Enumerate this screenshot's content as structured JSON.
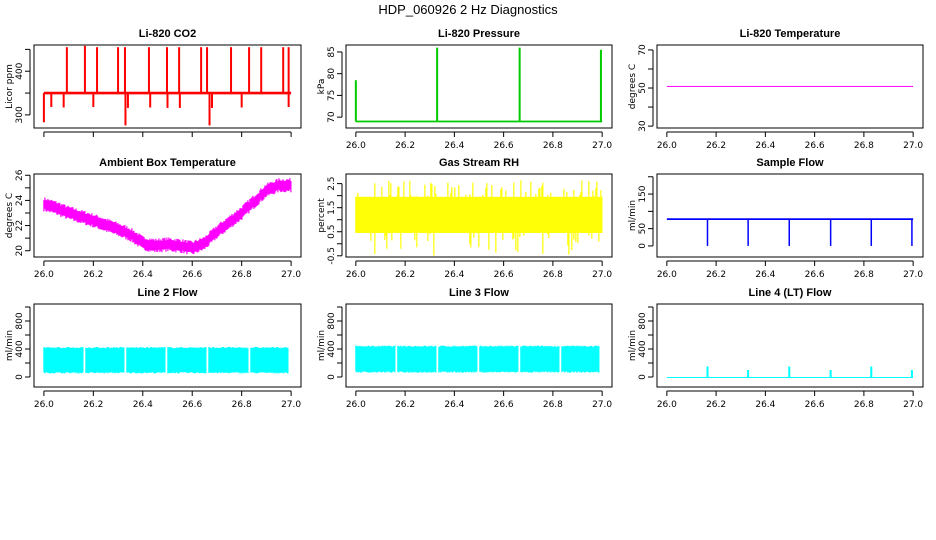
{
  "title": "HDP_060926  2 Hz Diagnostics",
  "chart_data": [
    {
      "type": "line",
      "title": "Li-820 CO2",
      "ylabel": "Licor ppm",
      "color": "#ff0000",
      "xlim": [
        25.96,
        27.04
      ],
      "xticks": [
        26.0,
        26.2,
        26.4,
        26.6,
        26.8,
        27.0
      ],
      "show_xtick_labels": false,
      "ylim": [
        270,
        460
      ],
      "yticks": [
        300,
        350,
        400,
        450
      ],
      "ytick_labels": [
        "300",
        "",
        "400",
        ""
      ],
      "baseline": {
        "x": [
          26.0,
          27.0
        ],
        "y": 350,
        "band": [
          347,
          353
        ]
      },
      "spikes": {
        "x": [
          26.093,
          26.166,
          26.215,
          26.3,
          26.328,
          26.425,
          26.498,
          26.547,
          26.636,
          26.66,
          26.757,
          26.83,
          26.879,
          26.968,
          26.99
        ],
        "y": [
          455,
          458,
          455,
          455,
          455,
          455,
          455,
          455,
          455,
          455,
          455,
          455,
          455,
          455,
          455
        ]
      },
      "dips": {
        "x": [
          26.0,
          26.03,
          26.08,
          26.2,
          26.33,
          26.34,
          26.43,
          26.5,
          26.55,
          26.67,
          26.68,
          26.8,
          26.99
        ],
        "y": [
          283,
          318,
          317,
          318,
          276,
          316,
          317,
          316,
          316,
          276,
          316,
          317,
          318
        ]
      }
    },
    {
      "type": "line",
      "title": "Li-820 Pressure",
      "ylabel": "kPa",
      "color": "#00cc00",
      "xlim": [
        25.96,
        27.04
      ],
      "xticks": [
        26.0,
        26.2,
        26.4,
        26.6,
        26.8,
        27.0
      ],
      "show_xtick_labels": true,
      "xtick_labels": [
        "26.0",
        "26.2",
        "26.4",
        "26.6",
        "26.8",
        "27.0"
      ],
      "ylim": [
        67.5,
        86.6
      ],
      "yticks": [
        70,
        75,
        80,
        85
      ],
      "ytick_labels": [
        "70",
        "75",
        "80",
        "85"
      ],
      "baseline": {
        "x": [
          26.0,
          27.0
        ],
        "y": 69,
        "band": [
          68.8,
          69.2
        ]
      },
      "spikes": {
        "x": [
          26.0,
          26.33,
          26.665,
          26.995
        ],
        "y": [
          78.5,
          86,
          86,
          85.5
        ]
      }
    },
    {
      "type": "line",
      "title": "Li-820 Temperature",
      "ylabel": "degrees C",
      "color": "#ff00ff",
      "xlim": [
        25.96,
        27.04
      ],
      "xticks": [
        26.0,
        26.2,
        26.4,
        26.6,
        26.8,
        27.0
      ],
      "show_xtick_labels": true,
      "xtick_labels": [
        "26.0",
        "26.2",
        "26.4",
        "26.6",
        "26.8",
        "27.0"
      ],
      "ylim": [
        29,
        72.6
      ],
      "yticks": [
        30,
        40,
        50,
        60,
        70
      ],
      "ytick_labels": [
        "30",
        "",
        "50",
        "",
        "70"
      ],
      "baseline": {
        "x": [
          26.0,
          27.0
        ],
        "y": 51,
        "band": [
          50.9,
          51.1
        ]
      }
    },
    {
      "type": "area",
      "title": "Ambient Box Temperature",
      "ylabel": "degrees C",
      "color": "#ff00ff",
      "xlim": [
        25.96,
        27.04
      ],
      "xticks": [
        26.0,
        26.2,
        26.4,
        26.6,
        26.8,
        27.0
      ],
      "show_xtick_labels": true,
      "xtick_labels": [
        "26.0",
        "26.2",
        "26.4",
        "26.6",
        "26.8",
        "27.0"
      ],
      "ylim": [
        19.5,
        26.1
      ],
      "yticks": [
        20,
        21,
        22,
        23,
        24,
        25,
        26
      ],
      "ytick_labels": [
        "20",
        "",
        "22",
        "",
        "24",
        "",
        "26"
      ],
      "trend": {
        "x": [
          26.0,
          26.05,
          26.1,
          26.2,
          26.3,
          26.35,
          26.4,
          26.45,
          26.5,
          26.55,
          26.6,
          26.65,
          26.7,
          26.8,
          26.9,
          26.95,
          27.0
        ],
        "y": [
          23.7,
          23.4,
          23.0,
          22.4,
          21.7,
          21.3,
          20.6,
          20.4,
          20.5,
          20.4,
          20.2,
          20.6,
          21.5,
          23.0,
          24.8,
          25.2,
          25.2
        ],
        "halfwidth": 0.45
      }
    },
    {
      "type": "area",
      "title": "Gas Stream RH",
      "ylabel": "percent",
      "color": "#ffff00",
      "xlim": [
        25.96,
        27.04
      ],
      "xticks": [
        26.0,
        26.2,
        26.4,
        26.6,
        26.8,
        27.0
      ],
      "show_xtick_labels": true,
      "xtick_labels": [
        "26.0",
        "26.2",
        "26.4",
        "26.6",
        "26.8",
        "27.0"
      ],
      "ylim": [
        -0.55,
        2.9
      ],
      "yticks": [
        -0.5,
        0,
        0.5,
        1,
        1.5,
        2,
        2.5
      ],
      "ytick_labels": [
        "-0.5",
        "",
        "0.5",
        "",
        "1.5",
        "",
        "2.5"
      ],
      "band": {
        "x": [
          26.0,
          27.0
        ],
        "low": 0.45,
        "high": 1.95
      },
      "extremes": {
        "min": -0.5,
        "max": 2.65
      }
    },
    {
      "type": "line",
      "title": "Sample Flow",
      "ylabel": "ml/min",
      "color": "#0000ff",
      "xlim": [
        25.96,
        27.04
      ],
      "xticks": [
        26.0,
        26.2,
        26.4,
        26.6,
        26.8,
        27.0
      ],
      "show_xtick_labels": true,
      "xtick_labels": [
        "26.0",
        "26.2",
        "26.4",
        "26.6",
        "26.8",
        "27.0"
      ],
      "ylim": [
        -32,
        208
      ],
      "yticks": [
        0,
        50,
        100,
        150,
        200
      ],
      "ytick_labels": [
        "0",
        "50",
        "",
        "150",
        ""
      ],
      "baseline": {
        "x": [
          26.0,
          27.0
        ],
        "y": 77,
        "band": [
          75,
          80
        ]
      },
      "drops": {
        "x": [
          26.165,
          26.33,
          26.497,
          26.665,
          26.83,
          26.995
        ],
        "y": [
          0,
          0,
          0,
          0,
          0,
          0
        ]
      }
    },
    {
      "type": "area",
      "title": "Line 2 Flow",
      "ylabel": "ml/min",
      "color": "#00ffff",
      "xlim": [
        25.96,
        27.04
      ],
      "xticks": [
        26.0,
        26.2,
        26.4,
        26.6,
        26.8,
        27.0
      ],
      "show_xtick_labels": true,
      "xtick_labels": [
        "26.0",
        "26.2",
        "26.4",
        "26.6",
        "26.8",
        "27.0"
      ],
      "ylim": [
        -143,
        1043
      ],
      "yticks": [
        0,
        200,
        400,
        600,
        800,
        1000
      ],
      "ytick_labels": [
        "0",
        "",
        "400",
        "",
        "800",
        ""
      ],
      "band": {
        "x": [
          26.0,
          26.99
        ],
        "low": 60,
        "high": 420
      },
      "gaps": [
        26.163,
        26.33,
        26.497,
        26.663,
        26.83
      ]
    },
    {
      "type": "area",
      "title": "Line 3 Flow",
      "ylabel": "ml/min",
      "color": "#00ffff",
      "xlim": [
        25.96,
        27.04
      ],
      "xticks": [
        26.0,
        26.2,
        26.4,
        26.6,
        26.8,
        27.0
      ],
      "show_xtick_labels": true,
      "xtick_labels": [
        "26.0",
        "26.2",
        "26.4",
        "26.6",
        "26.8",
        "27.0"
      ],
      "ylim": [
        -143,
        1043
      ],
      "yticks": [
        0,
        200,
        400,
        600,
        800,
        1000
      ],
      "ytick_labels": [
        "0",
        "",
        "400",
        "",
        "800",
        ""
      ],
      "band": {
        "x": [
          26.0,
          26.99
        ],
        "low": 70,
        "high": 440
      },
      "gaps": [
        26.163,
        26.33,
        26.497,
        26.663,
        26.83
      ]
    },
    {
      "type": "line",
      "title": "Line 4 (LT) Flow",
      "ylabel": "ml/min",
      "color": "#00ffff",
      "xlim": [
        25.96,
        27.04
      ],
      "xticks": [
        26.0,
        26.2,
        26.4,
        26.6,
        26.8,
        27.0
      ],
      "show_xtick_labels": true,
      "xtick_labels": [
        "26.0",
        "26.2",
        "26.4",
        "26.6",
        "26.8",
        "27.0"
      ],
      "ylim": [
        -143,
        1043
      ],
      "yticks": [
        0,
        200,
        400,
        600,
        800,
        1000
      ],
      "ytick_labels": [
        "0",
        "",
        "400",
        "",
        "800",
        ""
      ],
      "baseline": {
        "x": [
          26.0,
          27.0
        ],
        "y": 0,
        "band": [
          0,
          0
        ]
      },
      "spikes": {
        "x": [
          26.165,
          26.33,
          26.497,
          26.665,
          26.83,
          26.995
        ],
        "y": [
          150,
          100,
          150,
          100,
          150,
          100
        ]
      }
    }
  ]
}
